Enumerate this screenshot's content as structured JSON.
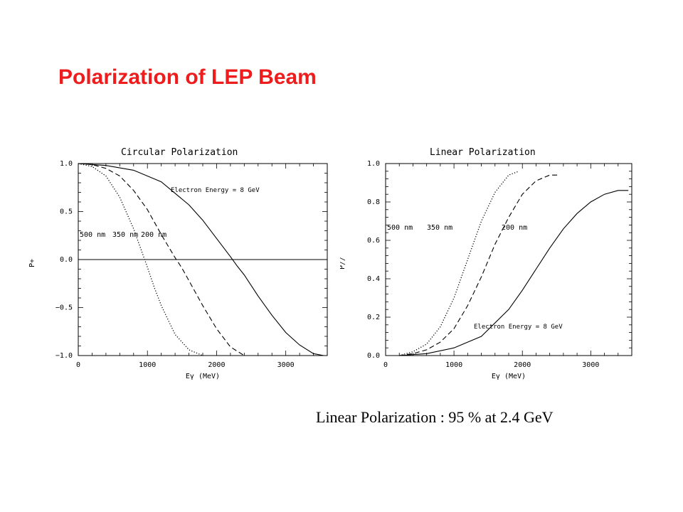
{
  "slide": {
    "title": "Polarization of LEP Beam",
    "caption": "Linear Polarization : 95 % at 2.4 GeV"
  },
  "chart_data": [
    {
      "type": "line",
      "title": "Circular Polarization",
      "xlabel": "Eγ (MeV)",
      "ylabel": "P+",
      "xlim": [
        0,
        3600
      ],
      "ylim": [
        -1.0,
        1.0
      ],
      "xticks": [
        0,
        1000,
        2000,
        3000
      ],
      "yticks": [
        -1.0,
        -0.5,
        0.0,
        0.5,
        1.0
      ],
      "ytick_labels": [
        "−1.0",
        "−0.5",
        "0.0",
        "0.5",
        "1.0"
      ],
      "xtick_labels": [
        "0",
        "1000",
        "2000",
        "3000"
      ],
      "reference_line_y": 0.0,
      "annotation": "Electron Energy = 8 GeV",
      "series": [
        {
          "name": "500 nm",
          "style": "dotted",
          "x": [
            0,
            200,
            400,
            600,
            800,
            1000,
            1100,
            1200,
            1400,
            1600,
            1800
          ],
          "y": [
            1.0,
            0.97,
            0.87,
            0.65,
            0.32,
            -0.08,
            -0.29,
            -0.48,
            -0.78,
            -0.94,
            -1.0
          ]
        },
        {
          "name": "350 nm",
          "style": "dashed",
          "x": [
            0,
            200,
            400,
            600,
            800,
            1000,
            1200,
            1400,
            1500,
            1600,
            1800,
            2000,
            2200,
            2400
          ],
          "y": [
            1.0,
            0.99,
            0.95,
            0.87,
            0.72,
            0.52,
            0.26,
            0.02,
            -0.09,
            -0.22,
            -0.48,
            -0.72,
            -0.91,
            -1.0
          ]
        },
        {
          "name": "200 nm",
          "style": "solid",
          "x": [
            0,
            400,
            800,
            1200,
            1600,
            1800,
            2000,
            2200,
            2300,
            2400,
            2600,
            2800,
            3000,
            3200,
            3400,
            3550
          ],
          "y": [
            1.0,
            0.98,
            0.93,
            0.81,
            0.57,
            0.41,
            0.22,
            0.03,
            -0.07,
            -0.16,
            -0.38,
            -0.58,
            -0.76,
            -0.89,
            -0.98,
            -1.0
          ]
        }
      ]
    },
    {
      "type": "line",
      "title": "Linear Polarization",
      "xlabel": "Eγ (MeV)",
      "ylabel": "P//",
      "xlim": [
        0,
        3600
      ],
      "ylim": [
        0.0,
        1.0
      ],
      "xticks": [
        0,
        1000,
        2000,
        3000
      ],
      "yticks": [
        0.0,
        0.2,
        0.4,
        0.6,
        0.8,
        1.0
      ],
      "ytick_labels": [
        "0.0",
        "0.2",
        "0.4",
        "0.6",
        "0.8",
        "1.0"
      ],
      "xtick_labels": [
        "0",
        "1000",
        "2000",
        "3000"
      ],
      "annotation": "Electron Energy = 8 GeV",
      "series": [
        {
          "name": "500 nm",
          "style": "dotted",
          "x": [
            200,
            400,
            600,
            800,
            1000,
            1200,
            1300,
            1400,
            1600,
            1800,
            1950
          ],
          "y": [
            0.0,
            0.02,
            0.06,
            0.15,
            0.3,
            0.5,
            0.6,
            0.7,
            0.85,
            0.94,
            0.96
          ]
        },
        {
          "name": "350 nm",
          "style": "dashed",
          "x": [
            200,
            400,
            600,
            800,
            1000,
            1200,
            1400,
            1600,
            1800,
            2000,
            2200,
            2400,
            2550
          ],
          "y": [
            0.0,
            0.01,
            0.03,
            0.07,
            0.14,
            0.26,
            0.41,
            0.58,
            0.72,
            0.84,
            0.91,
            0.94,
            0.94
          ]
        },
        {
          "name": "200 nm",
          "style": "solid",
          "x": [
            200,
            600,
            1000,
            1400,
            1800,
            2000,
            2200,
            2400,
            2600,
            2800,
            3000,
            3200,
            3400,
            3550
          ],
          "y": [
            0.0,
            0.01,
            0.04,
            0.1,
            0.24,
            0.34,
            0.45,
            0.56,
            0.66,
            0.74,
            0.8,
            0.84,
            0.86,
            0.86
          ]
        }
      ]
    }
  ]
}
